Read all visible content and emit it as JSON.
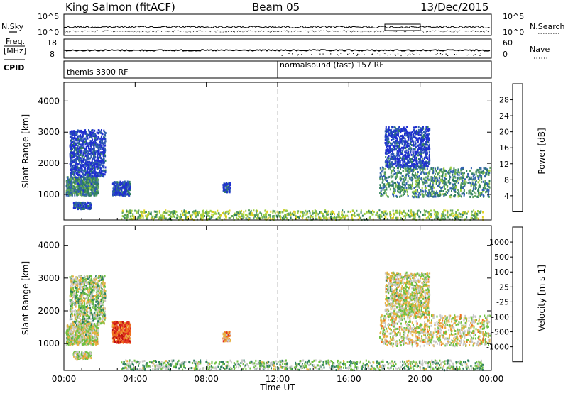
{
  "header": {
    "station": "King Salmon (fitACF)",
    "beam": "Beam 05",
    "date": "13/Dec/2015"
  },
  "top_panels": {
    "nsky_label": "N.Sky",
    "nsearch_label": "N.Search",
    "nsky_ticks": [
      "10^5",
      "10^0"
    ],
    "nsearch_ticks": [
      "10^5",
      "10^0"
    ],
    "freq_label_1": "Freq.",
    "freq_label_2": "[MHz]",
    "freq_ticks": [
      "18",
      "8"
    ],
    "nave_label": "Nave",
    "nave_ticks": [
      "60",
      "0"
    ],
    "cpid_label": "CPID",
    "cpid_mode_1": "themis 3300 RF",
    "cpid_mode_2": "normalsound (fast) 157 RF",
    "cpid_switch_hour": 12
  },
  "chart_data": [
    {
      "type": "heatmap",
      "name": "power",
      "ylabel": "Slant Range [km]",
      "xlim": [
        0,
        24
      ],
      "ylim": [
        180,
        4600
      ],
      "yticks": [
        1000,
        2000,
        3000,
        4000
      ],
      "xtick_labels": [
        "00:00",
        "04:00",
        "08:00",
        "12:00",
        "16:00",
        "20:00",
        "00:00"
      ],
      "colorbar": {
        "label": "Power [dB]",
        "range": [
          0,
          32
        ],
        "ticks": [
          "4",
          "8",
          "12",
          "16",
          "20",
          "24",
          "28"
        ]
      },
      "regions": [
        {
          "t": [
            0.1,
            1.9
          ],
          "r": [
            1000,
            1600
          ],
          "level": 0.28
        },
        {
          "t": [
            0.3,
            2.3
          ],
          "r": [
            1600,
            3100
          ],
          "level": 0.08
        },
        {
          "t": [
            0.5,
            1.5
          ],
          "r": [
            560,
            780
          ],
          "level": 0.12
        },
        {
          "t": [
            2.7,
            3.7
          ],
          "r": [
            1000,
            1450
          ],
          "level": 0.12
        },
        {
          "t": [
            8.9,
            9.3
          ],
          "r": [
            1100,
            1400
          ],
          "level": 0.1
        },
        {
          "t": [
            3.2,
            23.5
          ],
          "r": [
            220,
            520
          ],
          "level": 0.45
        },
        {
          "t": [
            17.7,
            23.9
          ],
          "r": [
            950,
            1900
          ],
          "level": 0.3
        },
        {
          "t": [
            18.0,
            20.5
          ],
          "r": [
            1900,
            3200
          ],
          "level": 0.08
        }
      ]
    },
    {
      "type": "heatmap",
      "name": "velocity",
      "ylabel": "Slant Range [km]",
      "xlabel": "Time UT",
      "xlim": [
        0,
        24
      ],
      "ylim": [
        180,
        4600
      ],
      "yticks": [
        1000,
        2000,
        3000,
        4000
      ],
      "xtick_labels": [
        "00:00",
        "04:00",
        "08:00",
        "12:00",
        "16:00",
        "20:00",
        "00:00"
      ],
      "colorbar": {
        "label": "Velocity [m s-1]",
        "ticks": [
          "-1000",
          "-500",
          "-100",
          "-25",
          "25",
          "100",
          "500",
          "1000"
        ]
      },
      "regions": [
        {
          "t": [
            0.1,
            1.9
          ],
          "r": [
            1000,
            1600
          ],
          "level": 0.5
        },
        {
          "t": [
            0.3,
            2.3
          ],
          "r": [
            1600,
            3100
          ],
          "level": 0.45
        },
        {
          "t": [
            0.5,
            1.5
          ],
          "r": [
            560,
            780
          ],
          "level": 0.5
        },
        {
          "t": [
            2.7,
            3.7
          ],
          "r": [
            1050,
            1700
          ],
          "level": 0.78
        },
        {
          "t": [
            8.9,
            9.3
          ],
          "r": [
            1100,
            1400
          ],
          "level": 0.65
        },
        {
          "t": [
            3.2,
            23.5
          ],
          "r": [
            220,
            520
          ],
          "level": 0.4
        },
        {
          "t": [
            17.7,
            23.9
          ],
          "r": [
            950,
            1900
          ],
          "level": 0.52
        },
        {
          "t": [
            18.0,
            20.5
          ],
          "r": [
            1900,
            3200
          ],
          "level": 0.5
        }
      ]
    }
  ],
  "colors": {
    "power_scale": [
      "#1f2fd0",
      "#2f5fb0",
      "#2f7f5f",
      "#5fa55f",
      "#a0d040",
      "#e0d020",
      "#f08020",
      "#e03020",
      "#c01010"
    ],
    "velocity_scale": [
      "#1f2fa0",
      "#2f5fb0",
      "#2f7f5f",
      "#6fc040",
      "#c8c8c8",
      "#e8b040",
      "#f07020",
      "#e03020",
      "#c01010"
    ]
  }
}
